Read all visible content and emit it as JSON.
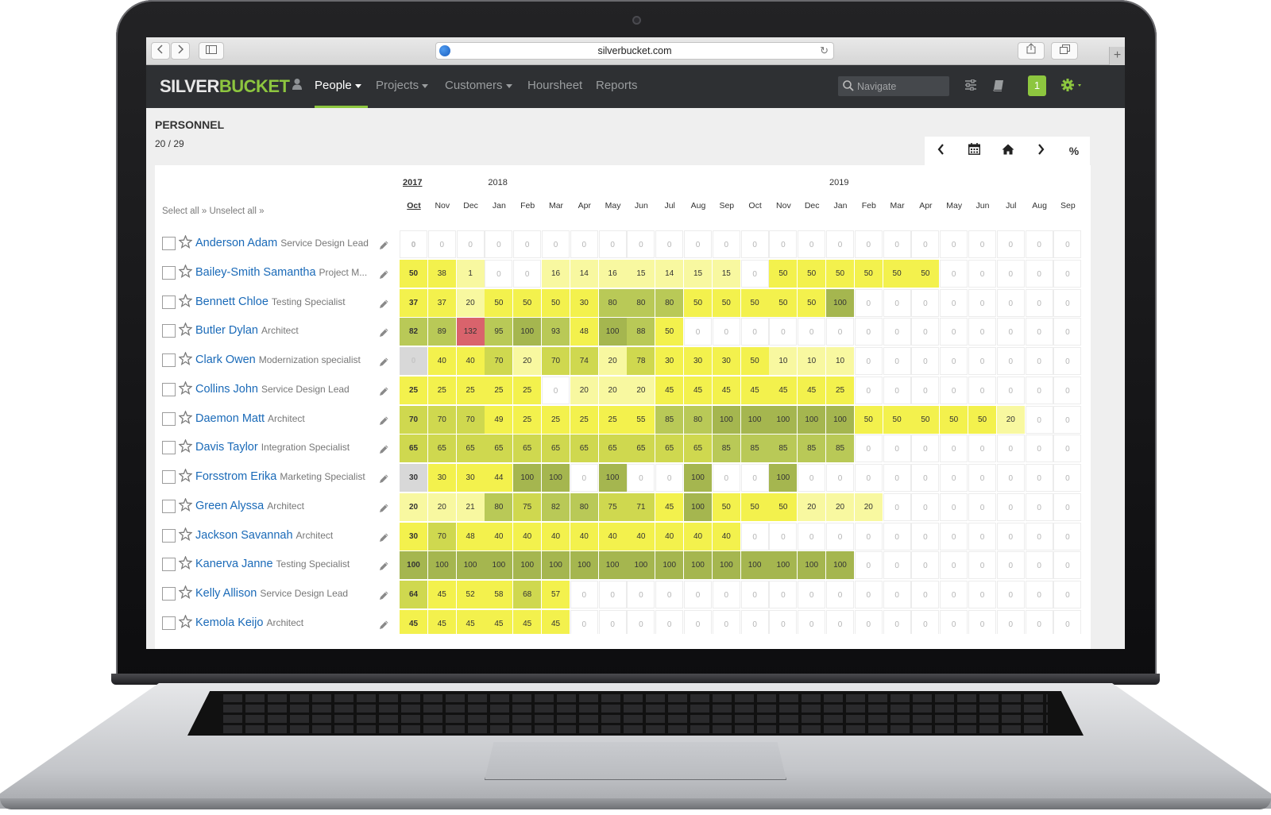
{
  "browser": {
    "url": "silverbucket.com",
    "back_icon": "chevron-left-icon",
    "forward_icon": "chevron-right-icon"
  },
  "app": {
    "logo": {
      "part1": "SILVER",
      "part2": "BUCKET"
    },
    "nav": [
      {
        "label": "People",
        "has_caret": true,
        "active": true
      },
      {
        "label": "Projects",
        "has_caret": true,
        "active": false
      },
      {
        "label": "Customers",
        "has_caret": true,
        "active": false
      },
      {
        "label": "Hoursheet",
        "has_caret": false,
        "active": false
      },
      {
        "label": "Reports",
        "has_caret": false,
        "active": false
      }
    ],
    "search_placeholder": "Navigate",
    "notification_count": "1",
    "accent_color": "#8dc63f",
    "nav_bg": "#2e3033"
  },
  "page": {
    "title": "PERSONNEL",
    "count": "20 / 29",
    "select_all": "Select all »",
    "unselect_all": "Unselect all »"
  },
  "toolbar": {
    "buttons": [
      "chevron-left-icon",
      "calendar-icon",
      "home-icon",
      "chevron-right-icon",
      "%"
    ]
  },
  "timeline": {
    "years": [
      {
        "label": "2017",
        "current": true
      },
      {
        "label": "2018",
        "current": false
      },
      {
        "label": "2019",
        "current": false
      }
    ],
    "months": [
      "Oct",
      "Nov",
      "Dec",
      "Jan",
      "Feb",
      "Mar",
      "Apr",
      "May",
      "Jun",
      "Jul",
      "Aug",
      "Sep",
      "Oct",
      "Nov",
      "Dec",
      "Jan",
      "Feb",
      "Mar",
      "Apr",
      "May",
      "Jun",
      "Jul",
      "Aug",
      "Sep"
    ]
  },
  "people": [
    {
      "name": "Anderson Adam",
      "role": "Service Design Lead",
      "values": [
        0,
        0,
        0,
        0,
        0,
        0,
        0,
        0,
        0,
        0,
        0,
        0,
        0,
        0,
        0,
        0,
        0,
        0,
        0,
        0,
        0,
        0,
        0,
        0
      ]
    },
    {
      "name": "Bailey-Smith Samantha",
      "role": "Project M...",
      "values": [
        50,
        38,
        1,
        0,
        0,
        16,
        14,
        16,
        15,
        14,
        15,
        15,
        0,
        50,
        50,
        50,
        50,
        50,
        50,
        0,
        0,
        0,
        0,
        0
      ]
    },
    {
      "name": "Bennett Chloe",
      "role": "Testing Specialist",
      "values": [
        37,
        37,
        20,
        50,
        50,
        50,
        30,
        80,
        80,
        80,
        50,
        50,
        50,
        50,
        50,
        100,
        0,
        0,
        0,
        0,
        0,
        0,
        0,
        0
      ]
    },
    {
      "name": "Butler Dylan",
      "role": "Architect",
      "values": [
        82,
        89,
        132,
        95,
        100,
        93,
        48,
        100,
        88,
        50,
        0,
        0,
        0,
        0,
        0,
        0,
        0,
        0,
        0,
        0,
        0,
        0,
        0,
        0
      ]
    },
    {
      "name": "Clark Owen",
      "role": "Modernization specialist",
      "values": [
        0,
        40,
        40,
        70,
        20,
        70,
        74,
        20,
        78,
        30,
        30,
        30,
        50,
        10,
        10,
        10,
        0,
        0,
        0,
        0,
        0,
        0,
        0,
        0
      ],
      "first_gray": true
    },
    {
      "name": "Collins John",
      "role": "Service Design Lead",
      "values": [
        25,
        25,
        25,
        25,
        25,
        0,
        20,
        20,
        20,
        45,
        45,
        45,
        45,
        45,
        45,
        25,
        0,
        0,
        0,
        0,
        0,
        0,
        0,
        0
      ]
    },
    {
      "name": "Daemon Matt",
      "role": "Architect",
      "values": [
        70,
        70,
        70,
        49,
        25,
        25,
        25,
        25,
        55,
        85,
        80,
        100,
        100,
        100,
        100,
        100,
        50,
        50,
        50,
        50,
        50,
        20,
        0,
        0
      ]
    },
    {
      "name": "Davis Taylor",
      "role": "Integration Specialist",
      "values": [
        65,
        65,
        65,
        65,
        65,
        65,
        65,
        65,
        65,
        65,
        65,
        85,
        85,
        85,
        85,
        85,
        0,
        0,
        0,
        0,
        0,
        0,
        0,
        0
      ]
    },
    {
      "name": "Forsstrom Erika",
      "role": "Marketing Specialist",
      "values": [
        30,
        30,
        30,
        44,
        100,
        100,
        0,
        100,
        0,
        0,
        100,
        0,
        0,
        100,
        0,
        0,
        0,
        0,
        0,
        0,
        0,
        0,
        0,
        0
      ],
      "first_gray": true
    },
    {
      "name": "Green Alyssa",
      "role": "Architect",
      "values": [
        20,
        20,
        21,
        80,
        75,
        82,
        80,
        75,
        71,
        45,
        100,
        50,
        50,
        50,
        20,
        20,
        20,
        0,
        0,
        0,
        0,
        0,
        0,
        0
      ]
    },
    {
      "name": "Jackson Savannah",
      "role": "Architect",
      "values": [
        30,
        70,
        48,
        40,
        40,
        40,
        40,
        40,
        40,
        40,
        40,
        40,
        0,
        0,
        0,
        0,
        0,
        0,
        0,
        0,
        0,
        0,
        0,
        0
      ]
    },
    {
      "name": "Kanerva Janne",
      "role": "Testing Specialist",
      "values": [
        100,
        100,
        100,
        100,
        100,
        100,
        100,
        100,
        100,
        100,
        100,
        100,
        100,
        100,
        100,
        100,
        0,
        0,
        0,
        0,
        0,
        0,
        0,
        0
      ]
    },
    {
      "name": "Kelly Allison",
      "role": "Service Design Lead",
      "values": [
        64,
        45,
        52,
        58,
        68,
        57,
        0,
        0,
        0,
        0,
        0,
        0,
        0,
        0,
        0,
        0,
        0,
        0,
        0,
        0,
        0,
        0,
        0,
        0
      ]
    },
    {
      "name": "Kemola Keijo",
      "role": "Architect",
      "values": [
        45,
        45,
        45,
        45,
        45,
        45,
        0,
        0,
        0,
        0,
        0,
        0,
        0,
        0,
        0,
        0,
        0,
        0,
        0,
        0,
        0,
        0,
        0,
        0
      ]
    }
  ],
  "heat_colors": {
    "zero": "#ffffff",
    "light": "#f8f8a0",
    "mid": "#f3f14d",
    "full": "#cfd84f",
    "high": "#b9c957",
    "very_high": "#a5b64f",
    "over": "#d9636c",
    "gray": "#d8d8d8"
  }
}
